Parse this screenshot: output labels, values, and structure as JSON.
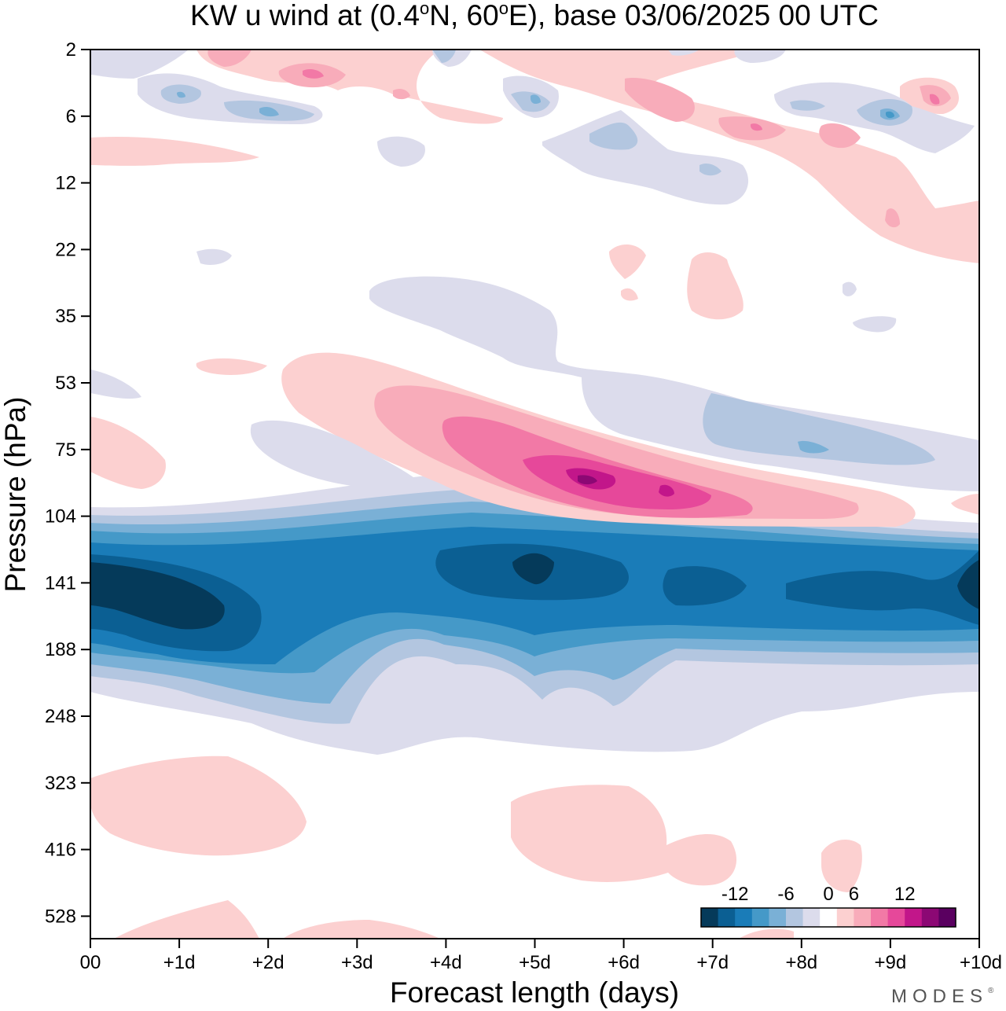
{
  "chart_data": {
    "type": "heatmap",
    "title": "KW u wind at (0.4°N, 60°E),  base 03/06/2025  00 UTC",
    "title_parts": [
      "KW u wind at (0.4",
      "o",
      "N, 60",
      "o",
      "E),  base 03/06/2025  00 UTC"
    ],
    "xlabel": "Forecast length (days)",
    "ylabel": "Pressure (hPa)",
    "x_tick_labels": [
      "00",
      "+1d",
      "+2d",
      "+3d",
      "+4d",
      "+5d",
      "+6d",
      "+7d",
      "+8d",
      "+9d",
      "+10d"
    ],
    "xlim": [
      0,
      10
    ],
    "y_tick_labels": [
      "2",
      "6",
      "12",
      "22",
      "35",
      "53",
      "75",
      "104",
      "141",
      "188",
      "248",
      "323",
      "416",
      "528"
    ],
    "y_axis": "pressure, log scale, inverted (2 hPa top)",
    "colorbar": {
      "tick_labels": [
        "-12",
        "-6",
        "0",
        "6",
        "12"
      ],
      "tick_values": [
        -12,
        -6,
        0,
        6,
        12
      ],
      "levels": [
        -16,
        -14,
        -12,
        -10,
        -8,
        -6,
        -4,
        -2,
        2,
        4,
        6,
        8,
        10,
        12,
        14,
        16
      ],
      "colors": [
        "#053a5a",
        "#0b5f93",
        "#1a7cb8",
        "#4599c8",
        "#7ab0d6",
        "#b3c6e0",
        "#dcdcec",
        "#ffffff",
        "#fcd0d0",
        "#f8acba",
        "#f279a6",
        "#e6489a",
        "#c2168a",
        "#8c0874",
        "#5a0060"
      ],
      "location": "bottom-right"
    },
    "features": [
      {
        "name": "easterly jet core",
        "sign": "negative",
        "min_value": -16,
        "pressure_hPa": 141,
        "days": [
          0,
          10
        ]
      },
      {
        "name": "westerly descending anomaly",
        "sign": "positive",
        "max_value": 14,
        "pressure_hPa": [
          53,
          104
        ],
        "days": [
          2.5,
          9
        ]
      },
      {
        "name": "stratospheric oscillations",
        "sign": "mixed",
        "pressure_hPa": [
          2,
          20
        ],
        "days": [
          0,
          10
        ]
      },
      {
        "name": "lower tropospheric positive patches",
        "sign": "positive",
        "pressure_hPa": [
          300,
          528
        ],
        "days": [
          0,
          10
        ]
      }
    ]
  },
  "branding": {
    "logo_text": "MODES",
    "logo_mark": "®"
  }
}
